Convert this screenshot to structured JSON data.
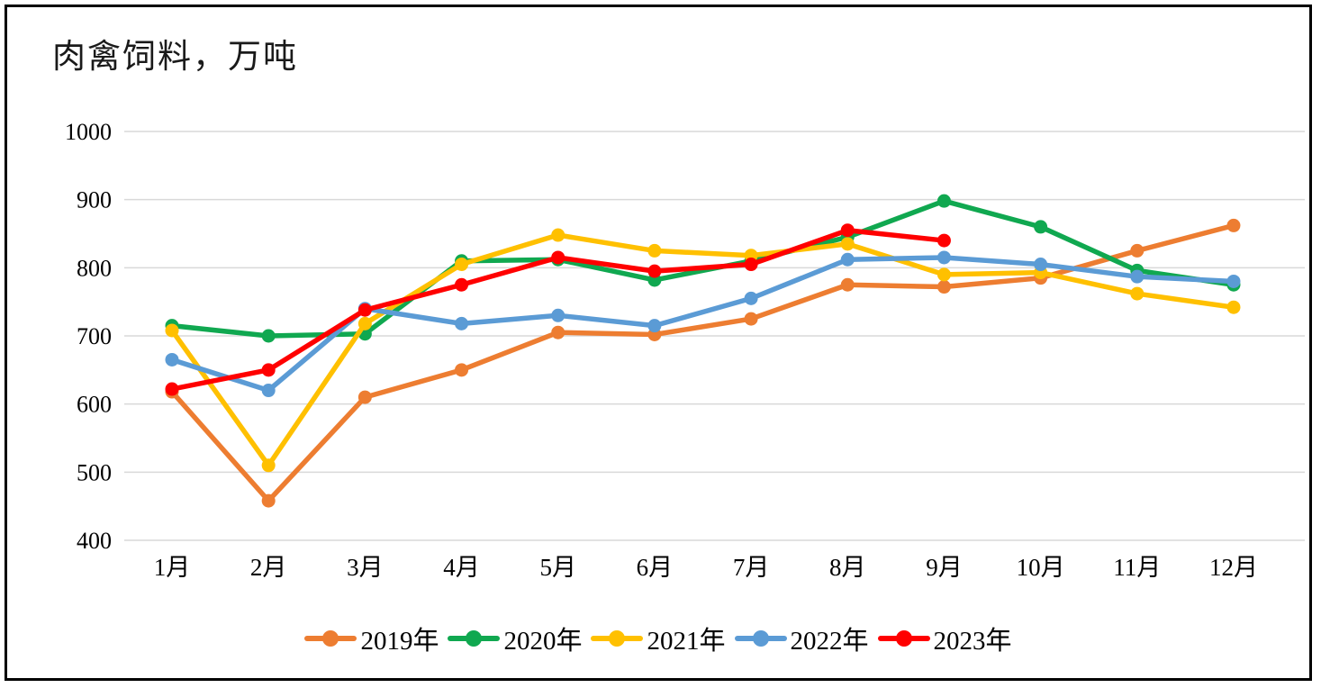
{
  "chart_data": {
    "type": "line",
    "title": "肉禽饲料，万吨",
    "unit_note": "万吨",
    "categories": [
      "1月",
      "2月",
      "3月",
      "4月",
      "5月",
      "6月",
      "7月",
      "8月",
      "9月",
      "10月",
      "11月",
      "12月"
    ],
    "series": [
      {
        "name": "2019年",
        "color": "#ED7D31",
        "values": [
          618,
          458,
          610,
          650,
          705,
          702,
          725,
          775,
          772,
          785,
          825,
          862
        ]
      },
      {
        "name": "2020年",
        "color": "#10A850",
        "values": [
          715,
          700,
          703,
          810,
          812,
          782,
          810,
          845,
          898,
          860,
          796,
          775
        ]
      },
      {
        "name": "2021年",
        "color": "#FFC000",
        "values": [
          708,
          510,
          718,
          805,
          848,
          825,
          818,
          835,
          790,
          793,
          762,
          742
        ]
      },
      {
        "name": "2022年",
        "color": "#5B9BD5",
        "values": [
          665,
          620,
          740,
          718,
          730,
          715,
          755,
          812,
          815,
          805,
          787,
          780
        ]
      },
      {
        "name": "2023年",
        "color": "#FF0000",
        "values": [
          622,
          650,
          738,
          775,
          815,
          795,
          805,
          855,
          840,
          null,
          null,
          null
        ]
      }
    ],
    "y_ticks": [
      400,
      500,
      600,
      700,
      800,
      900,
      1000
    ],
    "ylim": [
      400,
      1000
    ],
    "grid": true,
    "gridline_color": "#D9D9D9",
    "legend_position": "bottom",
    "text_color": "#000000"
  }
}
